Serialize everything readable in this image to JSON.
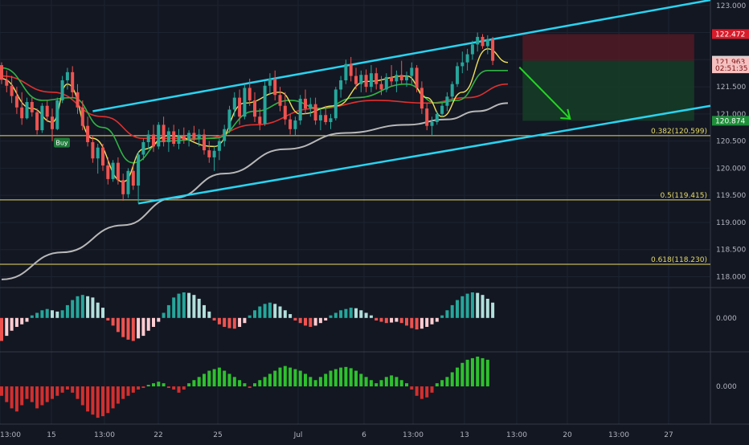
{
  "chart_data": {
    "type": "candlestick",
    "title": "",
    "colors": {
      "background": "#131722",
      "grid": "#1e2331",
      "axis_text": "#b2b5be",
      "up": "#26a69a",
      "down": "#ef5350",
      "channel": "#29d3f0",
      "fib": "#e8dc6a",
      "ema_fast": "#f1e15a",
      "ema_mid": "#2fb344",
      "ema_slow": "#e0302f",
      "ma_long": "#b8b8b8",
      "target_arrow": "#22d622",
      "short_stop_zone": "#5a1b26",
      "short_target_zone": "#163d26",
      "osc_up_strong": "#26a69a",
      "osc_up_weak": "#b2dfdb",
      "osc_down_strong": "#ef5350",
      "osc_down_weak": "#ffcdd2",
      "vol_up": "#2ec12e",
      "vol_down": "#d32f2f"
    },
    "price_axis": {
      "ticks": [
        "123.000",
        "122.500",
        "122.000",
        "121.500",
        "121.000",
        "120.500",
        "120.000",
        "119.500",
        "119.000",
        "118.500",
        "118.000"
      ],
      "tick_values": [
        123.0,
        122.5,
        122.0,
        121.5,
        121.0,
        120.5,
        120.0,
        119.5,
        119.0,
        118.5,
        118.0
      ],
      "ylim": [
        117.8,
        123.1
      ]
    },
    "time_axis": {
      "labels": [
        "13:00",
        "15",
        "13:00",
        "22",
        "25",
        "Jul",
        "6",
        "13:00",
        "13",
        "13:00",
        "20",
        "13:00",
        "27"
      ],
      "positions": [
        0,
        64,
        130,
        197,
        271,
        371,
        453,
        514,
        578,
        643,
        706,
        770,
        832
      ]
    },
    "price_labels": [
      {
        "text": "122.472",
        "value": 122.472,
        "bg": "#d81b2a",
        "fg": "#ffffff"
      },
      {
        "text": "121.981",
        "value": 121.981,
        "bg": "#dedede",
        "fg": "#131722"
      },
      {
        "text": "121.963",
        "value": 121.963,
        "bg": "#f6c1c1",
        "fg": "#7a1010"
      },
      {
        "text": "02:51:35",
        "value": 121.84,
        "bg": "#f6c1c1",
        "fg": "#7a1010"
      },
      {
        "text": "120.874",
        "value": 120.874,
        "bg": "#1f8f3a",
        "fg": "#ffffff"
      }
    ],
    "fib_levels": [
      {
        "label": "0.382(120.599)",
        "value": 120.599
      },
      {
        "label": "0.5(119.415)",
        "value": 119.415
      },
      {
        "label": "0.618(118.230)",
        "value": 118.23
      }
    ],
    "signals": [
      {
        "label": "Buy",
        "bar": 10
      }
    ],
    "channel": {
      "upper": [
        [
          18,
          121.05
        ],
        [
          140,
          123.1
        ]
      ],
      "lower": [
        [
          27,
          119.35
        ],
        [
          140,
          121.15
        ]
      ]
    },
    "short_position": {
      "entry": 121.981,
      "stop": 122.472,
      "target": 120.874,
      "from_bar": 101,
      "to_bar": 136
    },
    "forecast_arrow": {
      "from": [
        101,
        121.86
      ],
      "to": [
        111,
        120.91
      ]
    },
    "candles": [
      [
        121.9,
        121.95,
        121.55,
        121.63
      ],
      [
        121.63,
        121.8,
        121.4,
        121.52
      ],
      [
        121.52,
        121.7,
        121.2,
        121.33
      ],
      [
        121.33,
        121.5,
        121.0,
        121.12
      ],
      [
        121.12,
        121.4,
        120.8,
        120.92
      ],
      [
        120.92,
        121.3,
        120.9,
        121.22
      ],
      [
        121.22,
        121.3,
        120.95,
        121.03
      ],
      [
        121.03,
        121.1,
        120.62,
        120.7
      ],
      [
        120.7,
        121.2,
        120.65,
        121.15
      ],
      [
        121.15,
        121.25,
        120.85,
        120.95
      ],
      [
        120.95,
        121.1,
        120.5,
        120.72
      ],
      [
        120.72,
        121.3,
        120.7,
        121.25
      ],
      [
        121.25,
        121.7,
        121.2,
        121.62
      ],
      [
        121.62,
        121.85,
        121.45,
        121.77
      ],
      [
        121.77,
        121.88,
        121.3,
        121.4
      ],
      [
        121.4,
        121.55,
        121.0,
        121.12
      ],
      [
        121.12,
        121.25,
        120.7,
        120.78
      ],
      [
        120.78,
        120.95,
        120.4,
        120.48
      ],
      [
        120.48,
        120.6,
        120.1,
        120.18
      ],
      [
        120.18,
        120.45,
        119.9,
        120.38
      ],
      [
        120.38,
        120.45,
        119.95,
        120.05
      ],
      [
        120.05,
        120.2,
        119.7,
        119.8
      ],
      [
        119.8,
        120.15,
        119.75,
        120.1
      ],
      [
        120.1,
        120.2,
        119.7,
        119.78
      ],
      [
        119.78,
        119.9,
        119.4,
        119.52
      ],
      [
        119.52,
        120.0,
        119.45,
        119.95
      ],
      [
        119.95,
        120.1,
        119.6,
        119.68
      ],
      [
        119.68,
        120.3,
        119.35,
        120.25
      ],
      [
        120.25,
        120.55,
        120.15,
        120.48
      ],
      [
        120.48,
        120.7,
        120.35,
        120.62
      ],
      [
        120.62,
        120.8,
        120.3,
        120.4
      ],
      [
        120.4,
        120.85,
        120.35,
        120.8
      ],
      [
        120.8,
        120.95,
        120.4,
        120.48
      ],
      [
        120.48,
        120.75,
        120.3,
        120.68
      ],
      [
        120.68,
        120.8,
        120.4,
        120.45
      ],
      [
        120.45,
        120.72,
        120.35,
        120.6
      ],
      [
        120.6,
        120.75,
        120.45,
        120.52
      ],
      [
        120.52,
        120.7,
        120.4,
        120.65
      ],
      [
        120.65,
        120.78,
        120.48,
        120.55
      ],
      [
        120.55,
        120.72,
        120.4,
        120.62
      ],
      [
        120.62,
        120.72,
        120.25,
        120.33
      ],
      [
        120.33,
        120.5,
        120.1,
        120.2
      ],
      [
        120.2,
        120.4,
        119.95,
        120.32
      ],
      [
        120.32,
        120.55,
        120.15,
        120.5
      ],
      [
        120.5,
        120.8,
        120.4,
        120.72
      ],
      [
        120.72,
        121.15,
        120.65,
        121.08
      ],
      [
        121.08,
        121.4,
        120.95,
        121.3
      ],
      [
        121.3,
        121.45,
        120.8,
        120.95
      ],
      [
        120.95,
        121.55,
        120.9,
        121.48
      ],
      [
        121.48,
        121.65,
        121.15,
        121.25
      ],
      [
        121.25,
        121.4,
        120.85,
        120.95
      ],
      [
        120.95,
        121.1,
        120.7,
        120.82
      ],
      [
        120.82,
        121.6,
        120.78,
        121.52
      ],
      [
        121.52,
        121.75,
        121.35,
        121.65
      ],
      [
        121.65,
        121.8,
        121.25,
        121.35
      ],
      [
        121.35,
        121.5,
        121.05,
        121.15
      ],
      [
        121.15,
        121.4,
        120.8,
        120.9
      ],
      [
        120.9,
        121.0,
        120.62,
        120.72
      ],
      [
        120.72,
        120.95,
        120.6,
        120.88
      ],
      [
        120.88,
        121.35,
        120.8,
        121.28
      ],
      [
        121.28,
        121.45,
        121.0,
        121.1
      ],
      [
        121.1,
        121.3,
        120.95,
        121.18
      ],
      [
        121.18,
        121.3,
        120.8,
        120.88
      ],
      [
        120.88,
        121.1,
        120.7,
        120.98
      ],
      [
        120.98,
        121.15,
        120.8,
        120.85
      ],
      [
        120.85,
        121.0,
        120.72,
        120.92
      ],
      [
        120.92,
        121.5,
        120.88,
        121.45
      ],
      [
        121.45,
        121.7,
        121.3,
        121.62
      ],
      [
        121.62,
        122.0,
        121.55,
        121.92
      ],
      [
        121.92,
        122.05,
        121.6,
        121.7
      ],
      [
        121.7,
        121.85,
        121.45,
        121.55
      ],
      [
        121.55,
        121.8,
        121.4,
        121.72
      ],
      [
        121.72,
        121.82,
        121.4,
        121.5
      ],
      [
        121.5,
        121.9,
        121.4,
        121.75
      ],
      [
        121.75,
        121.85,
        121.45,
        121.55
      ],
      [
        121.55,
        121.7,
        121.35,
        121.45
      ],
      [
        121.45,
        121.75,
        121.4,
        121.68
      ],
      [
        121.68,
        121.9,
        121.5,
        121.6
      ],
      [
        121.6,
        121.8,
        121.4,
        121.72
      ],
      [
        121.72,
        121.98,
        121.55,
        121.62
      ],
      [
        121.62,
        121.78,
        121.5,
        121.7
      ],
      [
        121.7,
        121.95,
        121.55,
        121.85
      ],
      [
        121.85,
        121.9,
        121.4,
        121.48
      ],
      [
        121.48,
        121.6,
        121.0,
        121.1
      ],
      [
        121.1,
        121.2,
        120.7,
        120.78
      ],
      [
        120.78,
        120.95,
        120.6,
        120.85
      ],
      [
        120.85,
        121.05,
        120.8,
        121.0
      ],
      [
        121.0,
        121.2,
        120.95,
        121.15
      ],
      [
        121.15,
        121.4,
        121.05,
        121.32
      ],
      [
        121.32,
        121.6,
        121.25,
        121.55
      ],
      [
        121.55,
        121.95,
        121.5,
        121.88
      ],
      [
        121.88,
        122.15,
        121.75,
        121.95
      ],
      [
        121.95,
        122.2,
        121.8,
        122.1
      ],
      [
        122.1,
        122.35,
        122.0,
        122.28
      ],
      [
        122.28,
        122.5,
        122.15,
        122.42
      ],
      [
        122.42,
        122.47,
        122.2,
        122.25
      ],
      [
        122.25,
        122.45,
        122.1,
        122.38
      ],
      [
        122.38,
        122.42,
        121.9,
        121.98
      ]
    ],
    "ema_fast": [
      [
        0,
        121.65
      ],
      [
        6,
        121.1
      ],
      [
        10,
        120.85
      ],
      [
        13,
        121.55
      ],
      [
        18,
        120.55
      ],
      [
        24,
        119.75
      ],
      [
        28,
        120.35
      ],
      [
        33,
        120.6
      ],
      [
        42,
        120.4
      ],
      [
        48,
        121.2
      ],
      [
        55,
        121.4
      ],
      [
        59,
        121.0
      ],
      [
        66,
        121.15
      ],
      [
        72,
        121.6
      ],
      [
        80,
        121.7
      ],
      [
        84,
        121.3
      ],
      [
        87,
        120.95
      ],
      [
        91,
        121.4
      ],
      [
        96,
        122.2
      ],
      [
        100,
        121.95
      ]
    ],
    "ema_mid": [
      [
        0,
        121.85
      ],
      [
        8,
        121.25
      ],
      [
        14,
        121.3
      ],
      [
        20,
        120.75
      ],
      [
        26,
        120.1
      ],
      [
        32,
        120.5
      ],
      [
        42,
        120.55
      ],
      [
        50,
        121.05
      ],
      [
        57,
        121.25
      ],
      [
        63,
        121.1
      ],
      [
        70,
        121.3
      ],
      [
        80,
        121.55
      ],
      [
        86,
        121.2
      ],
      [
        90,
        121.25
      ],
      [
        96,
        121.8
      ],
      [
        100,
        121.8
      ]
    ],
    "ema_slow": [
      [
        0,
        121.7
      ],
      [
        10,
        121.4
      ],
      [
        20,
        120.95
      ],
      [
        28,
        120.55
      ],
      [
        40,
        120.55
      ],
      [
        50,
        120.8
      ],
      [
        62,
        121.1
      ],
      [
        74,
        121.25
      ],
      [
        84,
        121.2
      ],
      [
        92,
        121.3
      ],
      [
        100,
        121.55
      ]
    ],
    "ma_long": [
      [
        0,
        117.95
      ],
      [
        12,
        118.45
      ],
      [
        24,
        118.95
      ],
      [
        34,
        119.45
      ],
      [
        44,
        119.9
      ],
      [
        56,
        120.35
      ],
      [
        68,
        120.65
      ],
      [
        80,
        120.8
      ],
      [
        88,
        120.9
      ],
      [
        94,
        121.05
      ],
      [
        100,
        121.2
      ]
    ],
    "oscillator": {
      "zero_label": "0.000",
      "lim": [
        -1.2,
        1.0
      ],
      "values": [
        -0.9,
        -0.7,
        -0.5,
        -0.35,
        -0.25,
        -0.15,
        0.1,
        0.2,
        0.3,
        0.35,
        0.3,
        0.25,
        0.3,
        0.5,
        0.7,
        0.85,
        0.9,
        0.85,
        0.8,
        0.6,
        0.4,
        -0.1,
        -0.3,
        -0.55,
        -0.75,
        -0.85,
        -0.9,
        -0.8,
        -0.7,
        -0.5,
        -0.35,
        -0.15,
        0.2,
        0.5,
        0.8,
        0.95,
        1.0,
        0.98,
        0.9,
        0.75,
        0.5,
        0.25,
        -0.1,
        -0.25,
        -0.35,
        -0.4,
        -0.42,
        -0.35,
        -0.2,
        0.1,
        0.3,
        0.45,
        0.55,
        0.6,
        0.55,
        0.45,
        0.3,
        0.15,
        -0.1,
        -0.2,
        -0.3,
        -0.35,
        -0.3,
        -0.2,
        -0.1,
        0.1,
        0.2,
        0.3,
        0.35,
        0.4,
        0.38,
        0.3,
        0.2,
        0.1,
        -0.1,
        -0.15,
        -0.2,
        -0.18,
        -0.15,
        -0.2,
        -0.3,
        -0.4,
        -0.45,
        -0.42,
        -0.35,
        -0.25,
        -0.15,
        0.1,
        0.3,
        0.5,
        0.7,
        0.85,
        0.95,
        1.0,
        0.98,
        0.9,
        0.75,
        0.6
      ]
    },
    "volume_osc": {
      "zero_label": "0.000",
      "lim": [
        -1.1,
        1.0
      ],
      "values": [
        -0.3,
        -0.5,
        -0.7,
        -0.8,
        -0.6,
        -0.4,
        -0.5,
        -0.7,
        -0.6,
        -0.5,
        -0.4,
        -0.3,
        -0.2,
        -0.1,
        -0.2,
        -0.4,
        -0.6,
        -0.8,
        -0.9,
        -1.0,
        -0.95,
        -0.85,
        -0.7,
        -0.55,
        -0.4,
        -0.3,
        -0.2,
        -0.1,
        -0.05,
        0.05,
        0.1,
        0.15,
        0.1,
        -0.05,
        -0.1,
        -0.2,
        -0.1,
        0.1,
        0.2,
        0.3,
        0.4,
        0.5,
        0.55,
        0.6,
        0.5,
        0.4,
        0.3,
        0.2,
        0.1,
        -0.05,
        0.1,
        0.2,
        0.3,
        0.4,
        0.5,
        0.6,
        0.65,
        0.6,
        0.55,
        0.5,
        0.4,
        0.3,
        0.2,
        0.3,
        0.4,
        0.5,
        0.55,
        0.6,
        0.62,
        0.58,
        0.5,
        0.4,
        0.3,
        0.2,
        0.1,
        0.2,
        0.3,
        0.35,
        0.3,
        0.2,
        0.1,
        -0.1,
        -0.3,
        -0.4,
        -0.35,
        -0.2,
        0.1,
        0.2,
        0.3,
        0.45,
        0.6,
        0.75,
        0.85,
        0.9,
        0.95,
        0.9,
        0.85
      ]
    }
  }
}
